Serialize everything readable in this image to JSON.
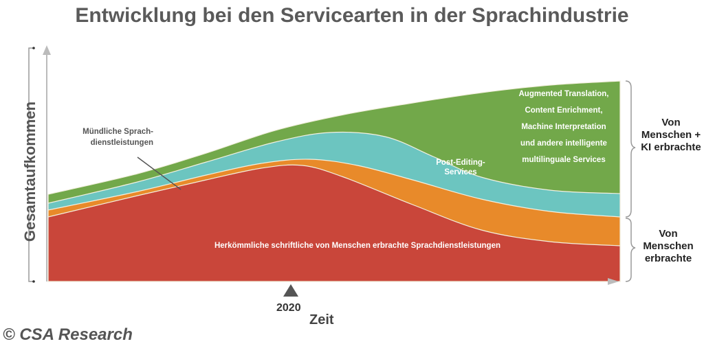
{
  "title": "Entwicklung bei den Servicearten in der Sprachindustrie",
  "y_axis_label": "Gesamtaufkommen",
  "x_axis_label": "Zeit",
  "marker_year": "2020",
  "layers": [
    {
      "name": "Herkömmliche schriftliche von Menschen erbrachte Sprachdienstleistungen",
      "color": "#c9463a"
    },
    {
      "name": "Mündliche Sprachdienstleistungen",
      "color": "#e88a2a"
    },
    {
      "name": "Post-Editing-Services",
      "color": "#6cc5c0"
    },
    {
      "name": "Augmented Translation, Content Enrichment, Machine Interpretation und andere intelligente multilinguale Services",
      "color": "#72a84a"
    }
  ],
  "labels": {
    "traditional": "Herkömmliche schriftliche von Menschen erbrachte Sprachdienstleistungen",
    "interpreting_line1": "Mündliche Sprach-",
    "interpreting_line2": "dienstleistungen",
    "post_editing_line1": "Post-Editing-",
    "post_editing_line2": "Services",
    "augmented_lines": [
      "Augmented Translation,",
      "Content Enrichment,",
      "Machine Interpretation",
      "und andere intelligente",
      "multilinguale Services"
    ]
  },
  "brackets": {
    "human_ai": [
      "Von",
      "Menschen +",
      "KI erbrachte"
    ],
    "human": [
      "Von",
      "Menschen",
      "erbrachte"
    ]
  },
  "copyright": "© CSA Research"
}
